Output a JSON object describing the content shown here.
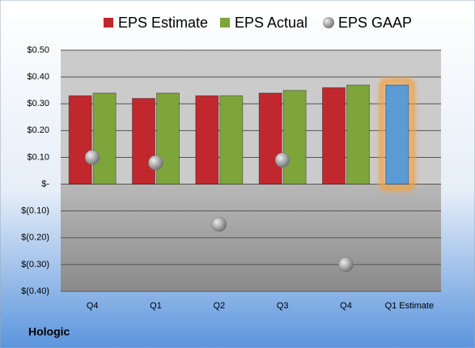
{
  "chart_data": {
    "type": "bar",
    "categories": [
      "Q4",
      "Q1",
      "Q2",
      "Q3",
      "Q4",
      "Q1 Estimate"
    ],
    "series": [
      {
        "name": "EPS Estimate",
        "color": "#c0282d",
        "values": [
          0.33,
          0.32,
          0.33,
          0.34,
          0.36,
          0.37
        ],
        "highlight_last_color": "#5b9bd5"
      },
      {
        "name": "EPS Actual",
        "color": "#7ea53a",
        "values": [
          0.34,
          0.34,
          0.33,
          0.35,
          0.37,
          null
        ]
      },
      {
        "name": "EPS GAAP",
        "color": "#9a9a9a",
        "marker": "circle",
        "values": [
          0.1,
          0.08,
          -0.15,
          0.09,
          -0.3,
          null
        ]
      }
    ],
    "ylim": [
      -0.4,
      0.5
    ],
    "yticks": [
      {
        "value": -0.4,
        "label": "$(0.40)"
      },
      {
        "value": -0.3,
        "label": "$(0.30)"
      },
      {
        "value": -0.2,
        "label": "$(0.20)"
      },
      {
        "value": -0.1,
        "label": "$(0.10)"
      },
      {
        "value": 0,
        "label": "$-"
      },
      {
        "value": 0.1,
        "label": "$0.10"
      },
      {
        "value": 0.2,
        "label": "$0.20"
      },
      {
        "value": 0.3,
        "label": "$0.30"
      },
      {
        "value": 0.4,
        "label": "$0.40"
      },
      {
        "value": 0.5,
        "label": "$0.50"
      }
    ],
    "grid": true,
    "legend": "top",
    "footer": "Hologic"
  }
}
